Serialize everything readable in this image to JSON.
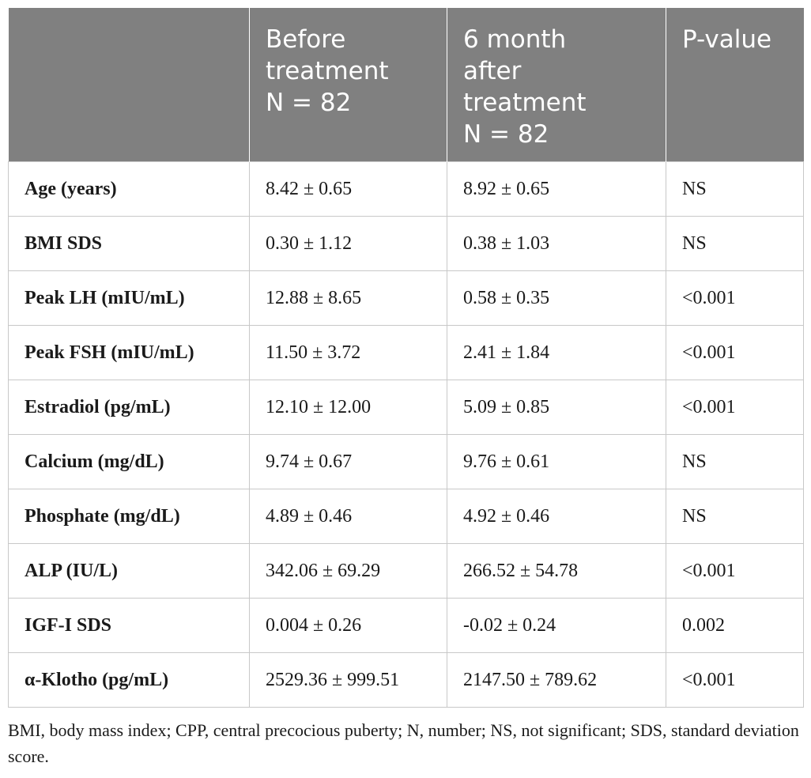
{
  "table": {
    "headers": [
      {
        "lines": [
          ""
        ]
      },
      {
        "lines": [
          "Before",
          "treatment",
          "N = 82"
        ]
      },
      {
        "lines": [
          "6 month",
          "after",
          "treatment",
          "N = 82"
        ]
      },
      {
        "lines": [
          "P-value"
        ]
      }
    ],
    "rows": [
      {
        "label": "Age (years)",
        "before": "8.42 ± 0.65",
        "after": "8.92 ± 0.65",
        "p": "NS"
      },
      {
        "label": "BMI SDS",
        "before": "0.30 ± 1.12",
        "after": "0.38 ± 1.03",
        "p": "NS"
      },
      {
        "label": "Peak LH (mIU/mL)",
        "before": "12.88 ± 8.65",
        "after": "0.58 ± 0.35",
        "p": "<0.001"
      },
      {
        "label": "Peak FSH (mIU/mL)",
        "before": "11.50 ± 3.72",
        "after": "2.41 ± 1.84",
        "p": "<0.001"
      },
      {
        "label": "Estradiol (pg/mL)",
        "before": "12.10 ± 12.00",
        "after": "5.09 ± 0.85",
        "p": "<0.001"
      },
      {
        "label": "Calcium (mg/dL)",
        "before": "9.74 ± 0.67",
        "after": "9.76 ± 0.61",
        "p": "NS"
      },
      {
        "label": "Phosphate (mg/dL)",
        "before": "4.89 ± 0.46",
        "after": "4.92 ± 0.46",
        "p": "NS"
      },
      {
        "label": "ALP (IU/L)",
        "before": "342.06 ± 69.29",
        "after": "266.52 ± 54.78",
        "p": "<0.001"
      },
      {
        "label": "IGF-I SDS",
        "before": "0.004 ± 0.26",
        "after": "-0.02 ± 0.24",
        "p": "0.002"
      },
      {
        "label": "α-Klotho (pg/mL)",
        "before": "2529.36 ± 999.51",
        "after": "2147.50 ± 789.62",
        "p": "<0.001"
      }
    ]
  },
  "footnote": "BMI, body mass index; CPP, central precocious puberty; N, number; NS, not significant; SDS, standard deviation score.",
  "colors": {
    "header_bg": "#808080",
    "header_text": "#ffffff",
    "border": "#c8c8c8"
  }
}
